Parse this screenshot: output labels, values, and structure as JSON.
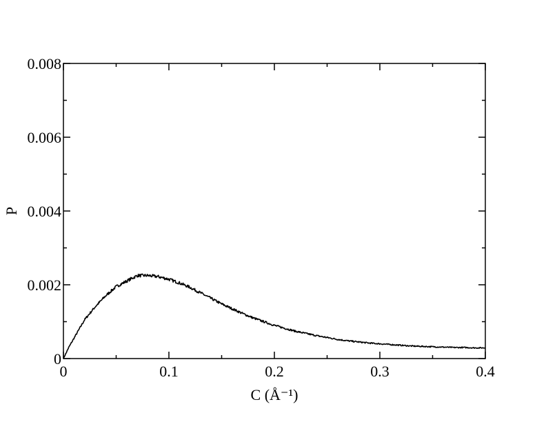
{
  "chart_data": {
    "type": "line",
    "title": "",
    "xlabel": "C (Å⁻¹)",
    "ylabel": "P",
    "xlim": [
      0,
      0.4
    ],
    "ylim": [
      0,
      0.008
    ],
    "x_ticks": [
      0,
      0.1,
      0.2,
      0.3,
      0.4
    ],
    "x_tick_labels": [
      "0",
      "0.1",
      "0.2",
      "0.3",
      "0.4"
    ],
    "y_ticks": [
      0,
      0.002,
      0.004,
      0.006,
      0.008
    ],
    "y_tick_labels": [
      "0",
      "0.002",
      "0.004",
      "0.006",
      "0.008"
    ],
    "grid": false,
    "legend": "none",
    "series": [
      {
        "color": "#000000",
        "x": [
          0.0,
          0.005,
          0.01,
          0.015,
          0.02,
          0.03,
          0.04,
          0.05,
          0.06,
          0.07,
          0.08,
          0.09,
          0.1,
          0.11,
          0.12,
          0.13,
          0.14,
          0.15,
          0.16,
          0.17,
          0.18,
          0.19,
          0.2,
          0.21,
          0.22,
          0.23,
          0.24,
          0.25,
          0.26,
          0.27,
          0.28,
          0.29,
          0.3,
          0.31,
          0.32,
          0.33,
          0.34,
          0.35,
          0.36,
          0.37,
          0.38,
          0.39,
          0.4
        ],
        "y": [
          0.0,
          0.0003,
          0.00055,
          0.0008,
          0.00105,
          0.0014,
          0.0017,
          0.00195,
          0.0021,
          0.00225,
          0.00225,
          0.00222,
          0.00215,
          0.00205,
          0.00193,
          0.00178,
          0.00163,
          0.00148,
          0.00135,
          0.00122,
          0.0011,
          0.001,
          0.0009,
          0.00082,
          0.00074,
          0.00068,
          0.00062,
          0.00057,
          0.00052,
          0.00048,
          0.00045,
          0.00042,
          0.0004,
          0.00038,
          0.00036,
          0.00034,
          0.00033,
          0.00032,
          0.00031,
          0.0003,
          0.0003,
          0.00029,
          0.00029
        ]
      }
    ]
  }
}
